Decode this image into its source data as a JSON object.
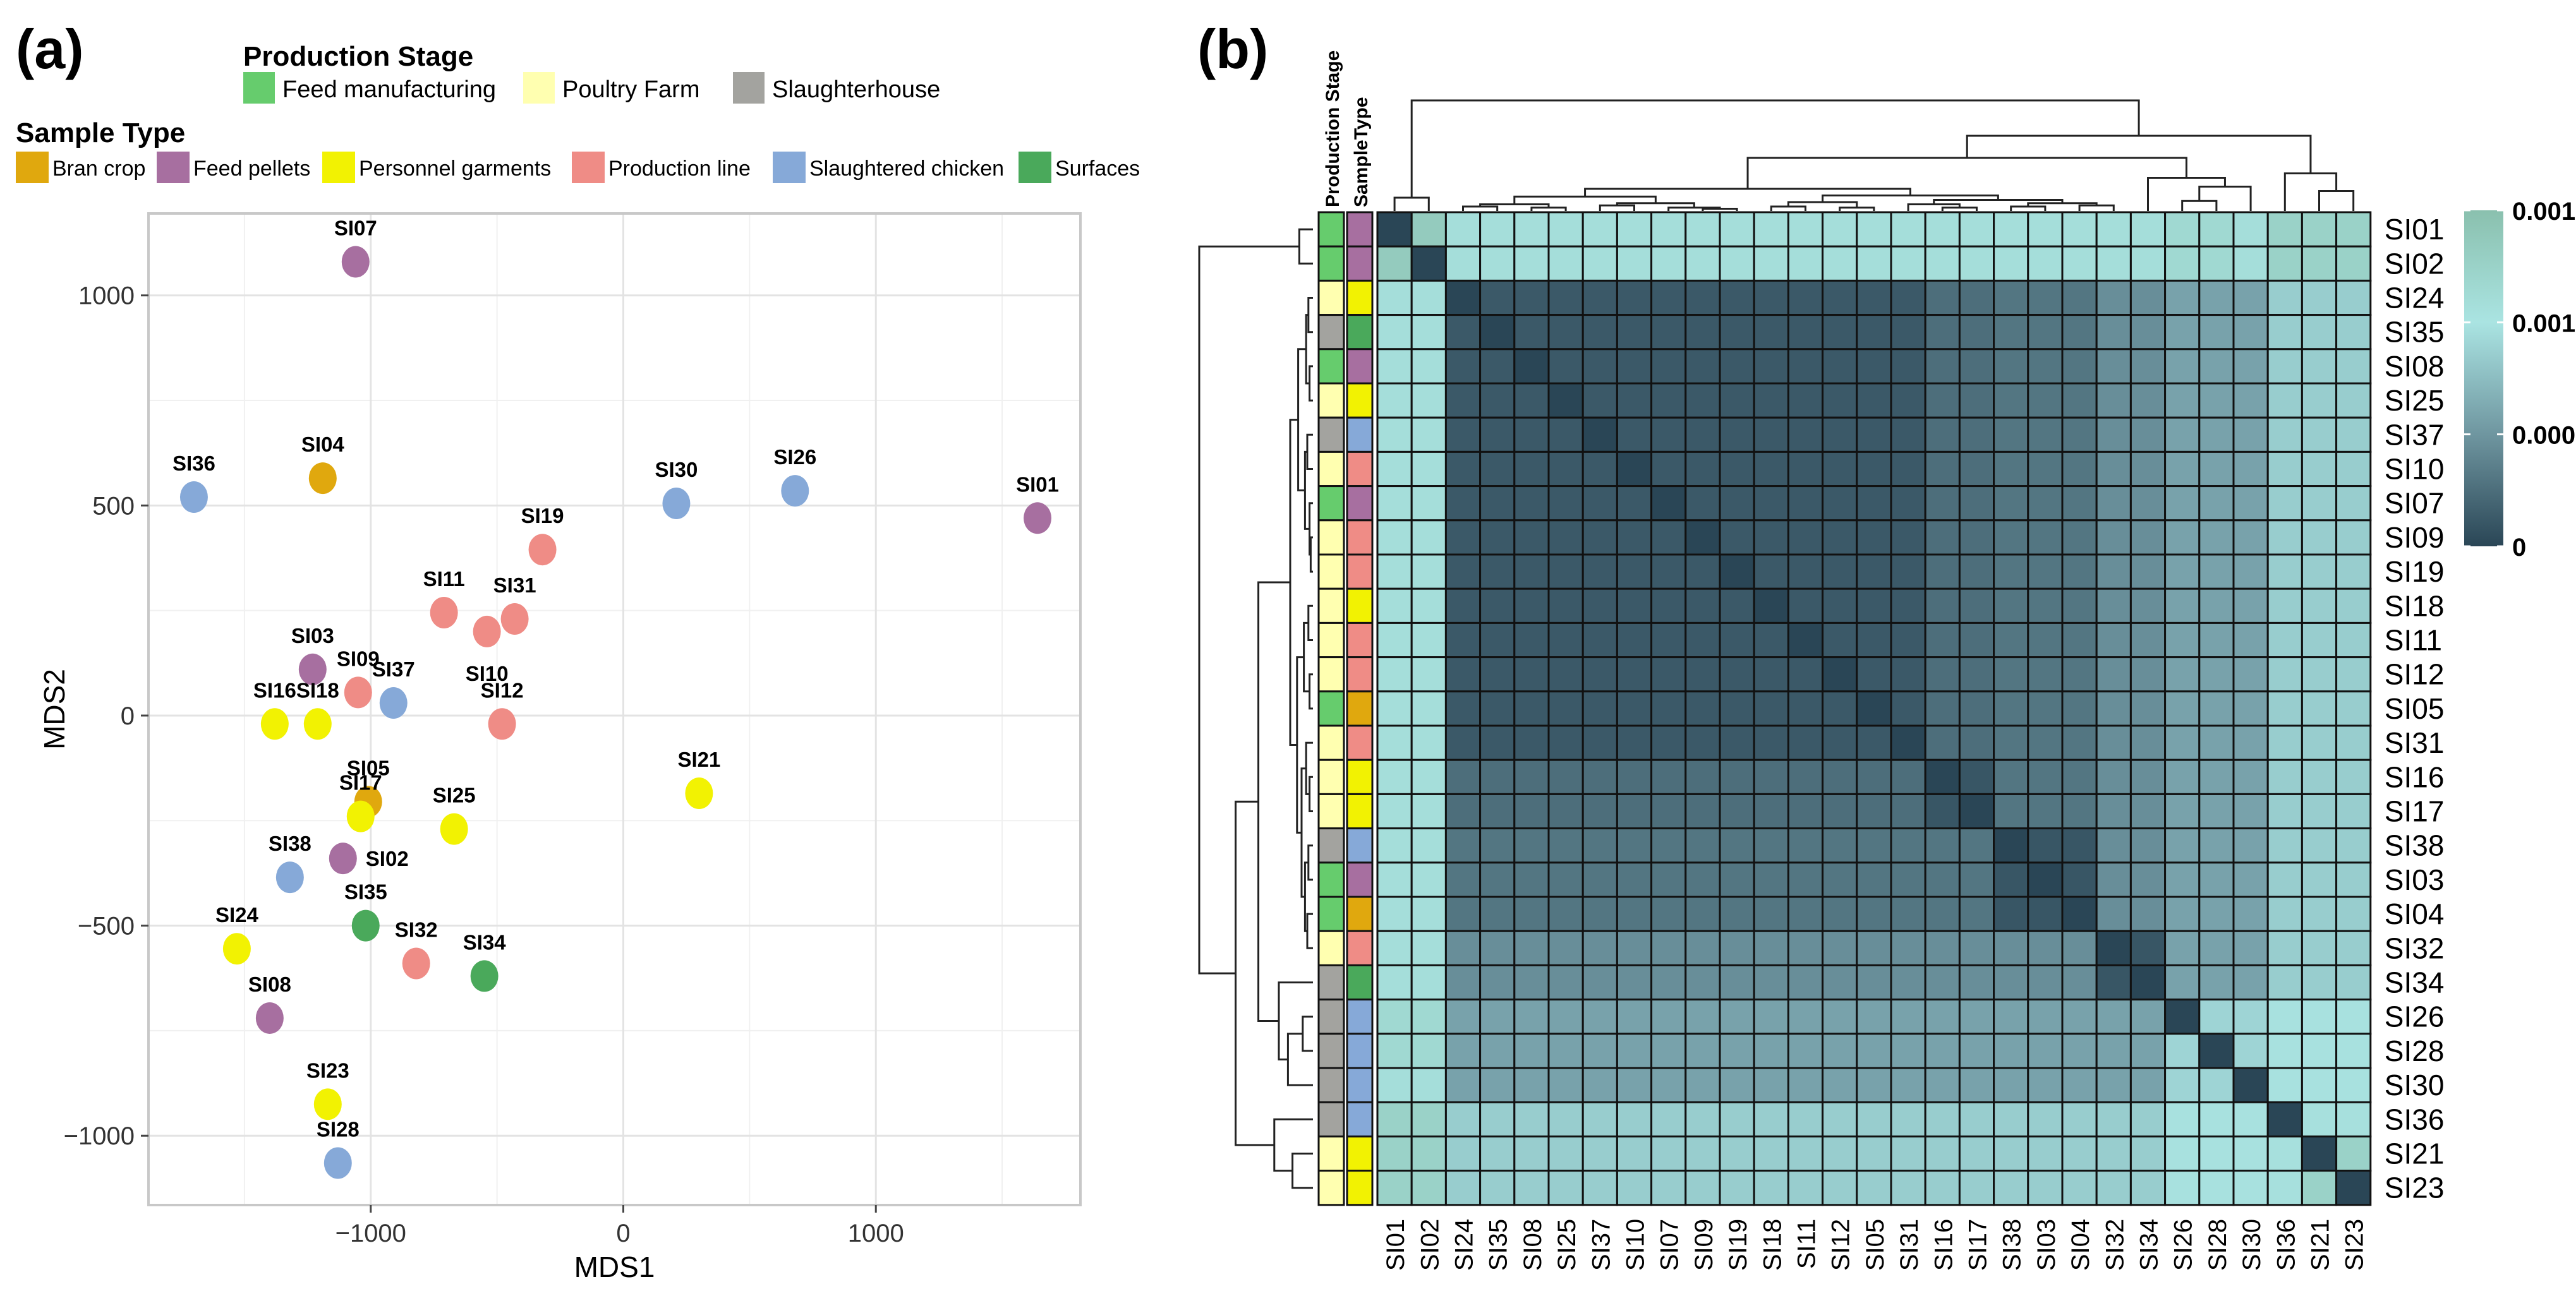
{
  "panel_labels": [
    "(a)",
    "(b)"
  ],
  "colors": {
    "stage": {
      "Feed manufacturing": "#66cc6d",
      "Poultry Farm": "#ffffb0",
      "Slaughterhouse": "#a3a39f"
    },
    "type": {
      "Bran crop": "#e0a80e",
      "Feed pellets": "#a76fa0",
      "Personnel garments": "#f2f202",
      "Production line": "#ef8c86",
      "Slaughtered chicken": "#86a9d8",
      "Surfaces": "#4aa95b"
    }
  },
  "legend": {
    "stage_title": "Production Stage",
    "stage_items": [
      "Feed manufacturing",
      "Poultry Farm",
      "Slaughterhouse"
    ],
    "type_title": "Sample Type",
    "type_items": [
      "Bran crop",
      "Feed pellets",
      "Personnel garments",
      "Production line",
      "Slaughtered chicken",
      "Surfaces"
    ]
  },
  "chart_data": [
    {
      "type": "scatter",
      "xlabel": "MDS1",
      "ylabel": "MDS2",
      "xlim": [
        -1880,
        1810
      ],
      "ylim": [
        -1165,
        1195
      ],
      "xticks": [
        -1000,
        0,
        1000
      ],
      "xtick_labels": [
        "−1000",
        "0",
        "1000"
      ],
      "yticks": [
        -1000,
        -500,
        0,
        500,
        1000
      ],
      "ytick_labels": [
        "−1000",
        "−500",
        "0",
        "500",
        "1000"
      ],
      "grid": true,
      "points": [
        {
          "label": "SI07",
          "x": -1060,
          "y": 1080,
          "type": "Feed pellets"
        },
        {
          "label": "SI04",
          "x": -1190,
          "y": 565,
          "type": "Bran crop"
        },
        {
          "label": "SI36",
          "x": -1700,
          "y": 520,
          "type": "Slaughtered chicken"
        },
        {
          "label": "SI30",
          "x": 210,
          "y": 505,
          "type": "Slaughtered chicken"
        },
        {
          "label": "SI26",
          "x": 680,
          "y": 535,
          "type": "Slaughtered chicken"
        },
        {
          "label": "SI01",
          "x": 1640,
          "y": 470,
          "type": "Feed pellets"
        },
        {
          "label": "SI19",
          "x": -320,
          "y": 395,
          "type": "Production line"
        },
        {
          "label": "SI11",
          "x": -710,
          "y": 245,
          "type": "Production line"
        },
        {
          "label": "SI31",
          "x": -430,
          "y": 230,
          "type": "Production line"
        },
        {
          "label": "SI10",
          "x": -540,
          "y": 200,
          "type": "Production line"
        },
        {
          "label": "SI03",
          "x": -1230,
          "y": 110,
          "type": "Feed pellets"
        },
        {
          "label": "SI09",
          "x": -1050,
          "y": 55,
          "type": "Production line"
        },
        {
          "label": "SI37",
          "x": -910,
          "y": 30,
          "type": "Slaughtered chicken"
        },
        {
          "label": "SI16",
          "x": -1380,
          "y": -20,
          "type": "Personnel garments"
        },
        {
          "label": "SI18",
          "x": -1210,
          "y": -20,
          "type": "Personnel garments"
        },
        {
          "label": "SI12",
          "x": -480,
          "y": -20,
          "type": "Production line"
        },
        {
          "label": "SI21",
          "x": 300,
          "y": -185,
          "type": "Personnel garments"
        },
        {
          "label": "SI05",
          "x": -1010,
          "y": -205,
          "type": "Bran crop"
        },
        {
          "label": "SI17",
          "x": -1040,
          "y": -240,
          "type": "Personnel garments"
        },
        {
          "label": "SI25",
          "x": -670,
          "y": -270,
          "type": "Personnel garments"
        },
        {
          "label": "SI02",
          "x": -1110,
          "y": -340,
          "type": "Feed pellets"
        },
        {
          "label": "SI38",
          "x": -1320,
          "y": -385,
          "type": "Slaughtered chicken"
        },
        {
          "label": "SI35",
          "x": -1020,
          "y": -500,
          "type": "Surfaces"
        },
        {
          "label": "SI24",
          "x": -1530,
          "y": -555,
          "type": "Personnel garments"
        },
        {
          "label": "SI32",
          "x": -820,
          "y": -590,
          "type": "Production line"
        },
        {
          "label": "SI34",
          "x": -550,
          "y": -620,
          "type": "Surfaces"
        },
        {
          "label": "SI08",
          "x": -1400,
          "y": -720,
          "type": "Feed pellets"
        },
        {
          "label": "SI23",
          "x": -1170,
          "y": -925,
          "type": "Personnel garments"
        },
        {
          "label": "SI28",
          "x": -1130,
          "y": -1065,
          "type": "Slaughtered chicken"
        }
      ]
    },
    {
      "type": "heatmap",
      "annotation_titles": [
        "Production Stage",
        "SampleType"
      ],
      "labels": [
        "SI01",
        "SI02",
        "SI24",
        "SI35",
        "SI08",
        "SI25",
        "SI37",
        "SI10",
        "SI07",
        "SI09",
        "SI19",
        "SI18",
        "SI11",
        "SI12",
        "SI05",
        "SI31",
        "SI16",
        "SI17",
        "SI38",
        "SI03",
        "SI04",
        "SI32",
        "SI34",
        "SI26",
        "SI28",
        "SI30",
        "SI36",
        "SI21",
        "SI23"
      ],
      "stage": [
        "Feed manufacturing",
        "Feed manufacturing",
        "Poultry Farm",
        "Slaughterhouse",
        "Feed manufacturing",
        "Poultry Farm",
        "Slaughterhouse",
        "Poultry Farm",
        "Feed manufacturing",
        "Poultry Farm",
        "Poultry Farm",
        "Poultry Farm",
        "Poultry Farm",
        "Poultry Farm",
        "Feed manufacturing",
        "Poultry Farm",
        "Poultry Farm",
        "Poultry Farm",
        "Slaughterhouse",
        "Feed manufacturing",
        "Feed manufacturing",
        "Poultry Farm",
        "Slaughterhouse",
        "Slaughterhouse",
        "Slaughterhouse",
        "Slaughterhouse",
        "Slaughterhouse",
        "Poultry Farm",
        "Poultry Farm"
      ],
      "sample_type": [
        "Feed pellets",
        "Feed pellets",
        "Personnel garments",
        "Surfaces",
        "Feed pellets",
        "Personnel garments",
        "Slaughtered chicken",
        "Production line",
        "Feed pellets",
        "Production line",
        "Production line",
        "Personnel garments",
        "Production line",
        "Production line",
        "Bran crop",
        "Production line",
        "Personnel garments",
        "Personnel garments",
        "Slaughtered chicken",
        "Feed pellets",
        "Bran crop",
        "Production line",
        "Surfaces",
        "Slaughtered chicken",
        "Slaughtered chicken",
        "Slaughtered chicken",
        "Slaughtered chicken",
        "Personnel garments",
        "Personnel garments"
      ],
      "colorbar": {
        "min": 0,
        "max": 0.0015,
        "ticks": [
          0,
          0.0005,
          0.001,
          0.0015
        ],
        "tick_labels": [
          "0",
          "0.0005",
          "0.0010",
          "0.0015"
        ]
      },
      "value_range": [
        0,
        0.0015
      ]
    }
  ]
}
